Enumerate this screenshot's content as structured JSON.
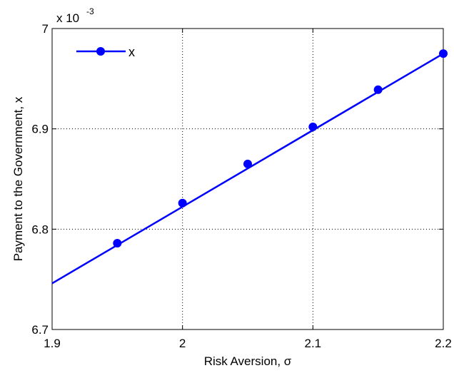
{
  "chart_data": {
    "type": "line",
    "xlabel": "Risk Aversion,  σ",
    "ylabel": "Payment to the Government, x",
    "y_exponent": {
      "base": "x 10",
      "power": "-3"
    },
    "xlim": [
      1.9,
      2.2
    ],
    "ylim": [
      6.7,
      7.0
    ],
    "x_ticks": [
      1.9,
      2.0,
      2.1,
      2.2
    ],
    "x_tick_labels": [
      "1.9",
      "2",
      "2.1",
      "2.2"
    ],
    "y_ticks": [
      6.7,
      6.8,
      6.9,
      7.0
    ],
    "y_tick_labels": [
      "6.7",
      "6.8",
      "6.9",
      "7"
    ],
    "grid": true,
    "legend_position": "top-left",
    "line_color": "#0000ff",
    "series": [
      {
        "name": "x",
        "line_x": [
          1.9,
          2.2
        ],
        "line_y": [
          6.746,
          6.975
        ],
        "marker_x": [
          1.95,
          2.0,
          2.05,
          2.1,
          2.15,
          2.2
        ],
        "marker_y": [
          6.786,
          6.826,
          6.865,
          6.902,
          6.939,
          6.975
        ]
      }
    ]
  }
}
